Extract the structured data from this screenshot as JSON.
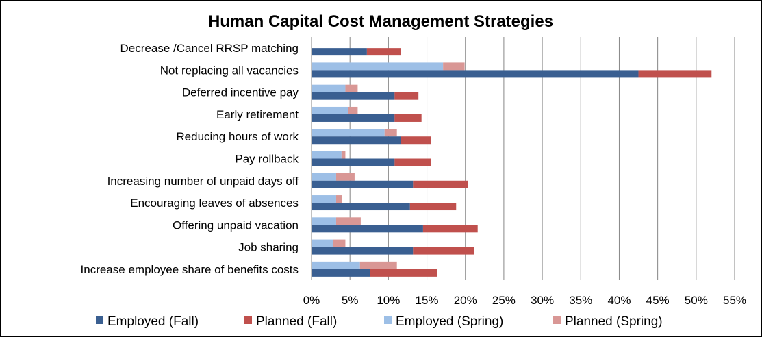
{
  "chart_data": {
    "type": "bar",
    "orientation": "horizontal",
    "stacked": true,
    "title": "Human Capital Cost Management Strategies",
    "categories": [
      "Decrease /Cancel RRSP matching",
      "Not replacing all vacancies",
      "Deferred incentive pay",
      "Early retirement",
      "Reducing hours of work",
      "Pay rollback",
      "Increasing number of unpaid days off",
      "Encouraging leaves of absences",
      "Offering unpaid vacation",
      "Job sharing",
      "Increase employee share of benefits costs"
    ],
    "series": [
      {
        "name": "Employed (Fall)",
        "group": "Fall",
        "color": "#3a5f91",
        "values": [
          7.2,
          42.5,
          10.8,
          10.8,
          11.6,
          10.8,
          13.2,
          12.8,
          14.5,
          13.2,
          7.6
        ]
      },
      {
        "name": "Planned (Fall)",
        "group": "Fall",
        "color": "#c0504d",
        "values": [
          4.4,
          9.5,
          3.1,
          3.5,
          3.9,
          4.7,
          7.1,
          6.0,
          7.1,
          7.9,
          8.7
        ]
      },
      {
        "name": "Employed (Spring)",
        "group": "Spring",
        "color": "#9dbfe6",
        "values": [
          null,
          17.1,
          4.4,
          4.8,
          9.5,
          3.9,
          3.2,
          3.2,
          3.2,
          2.8,
          6.3
        ]
      },
      {
        "name": "Planned (Spring)",
        "group": "Spring",
        "color": "#d99795",
        "values": [
          null,
          2.8,
          1.6,
          1.2,
          1.6,
          0.5,
          2.4,
          0.8,
          3.2,
          1.6,
          4.8
        ]
      }
    ],
    "xlim": [
      0,
      55
    ],
    "xticks": [
      0,
      5,
      10,
      15,
      20,
      25,
      30,
      35,
      40,
      45,
      50,
      55
    ],
    "xtick_labels": [
      "0%",
      "5%",
      "10%",
      "15%",
      "20%",
      "25%",
      "30%",
      "35%",
      "40%",
      "45%",
      "50%",
      "55%"
    ],
    "grid": "vertical",
    "legend": "bottom"
  }
}
